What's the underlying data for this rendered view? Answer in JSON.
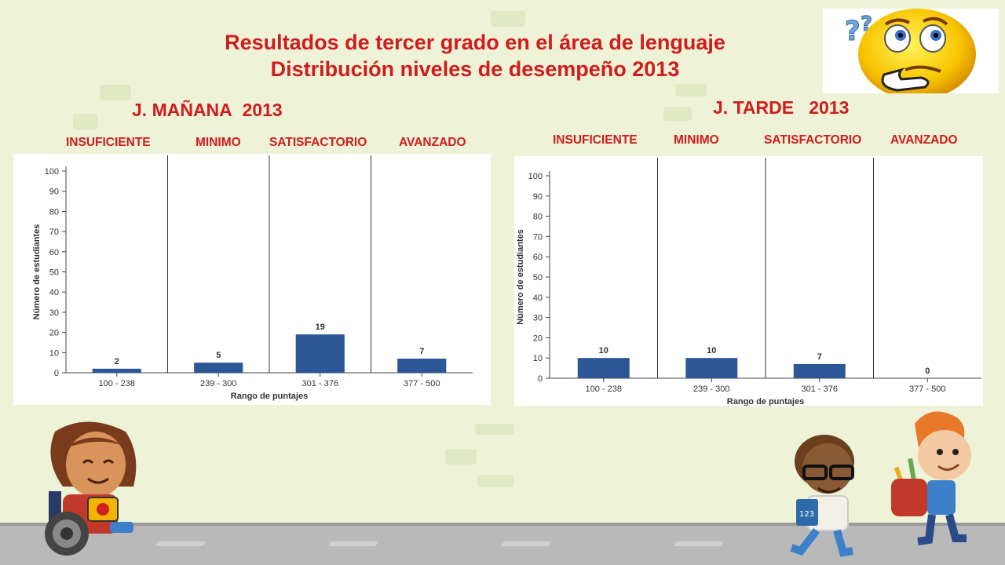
{
  "title": {
    "line1": "Resultados de tercer grado en el área de lenguaje",
    "line2": "Distribución  niveles de desempeño  2013"
  },
  "levels": [
    "INSUFICIENTE",
    "MINIMO",
    "SATISFACTORIO",
    "AVANZADO"
  ],
  "colors": {
    "title": "#d01c1c",
    "bar": "#2b5797",
    "background": "#eef3d8"
  },
  "icons": {
    "thinking_face": "thinking-emoji-icon"
  },
  "chart_data": [
    {
      "type": "bar",
      "panel_title": "J. MAÑANA",
      "panel_year": "2013",
      "categories": [
        "100 - 238",
        "239 - 300",
        "301 - 376",
        "377 - 500"
      ],
      "values": [
        2,
        5,
        19,
        7
      ],
      "value_labels": [
        "2",
        "5",
        "19",
        "7"
      ],
      "xlabel": "Rango de puntajes",
      "ylabel": "Número de estudiantes",
      "ylim": [
        0,
        100
      ],
      "yticks": [
        "0",
        "10",
        "20",
        "30",
        "40",
        "50",
        "60",
        "70",
        "80",
        "90",
        "100"
      ],
      "grid": false
    },
    {
      "type": "bar",
      "panel_title": "J. TARDE",
      "panel_year": "2013",
      "categories": [
        "100 - 238",
        "239 - 300",
        "301 - 376",
        "377 - 500"
      ],
      "values": [
        10,
        10,
        7,
        0
      ],
      "value_labels": [
        "10",
        "10",
        "7",
        "0"
      ],
      "xlabel": "Rango de puntajes",
      "ylabel": "Número de estudiantes",
      "ylim": [
        0,
        100
      ],
      "yticks": [
        "0",
        "10",
        "20",
        "30",
        "40",
        "50",
        "60",
        "70",
        "80",
        "90",
        "100"
      ],
      "grid": false
    }
  ]
}
